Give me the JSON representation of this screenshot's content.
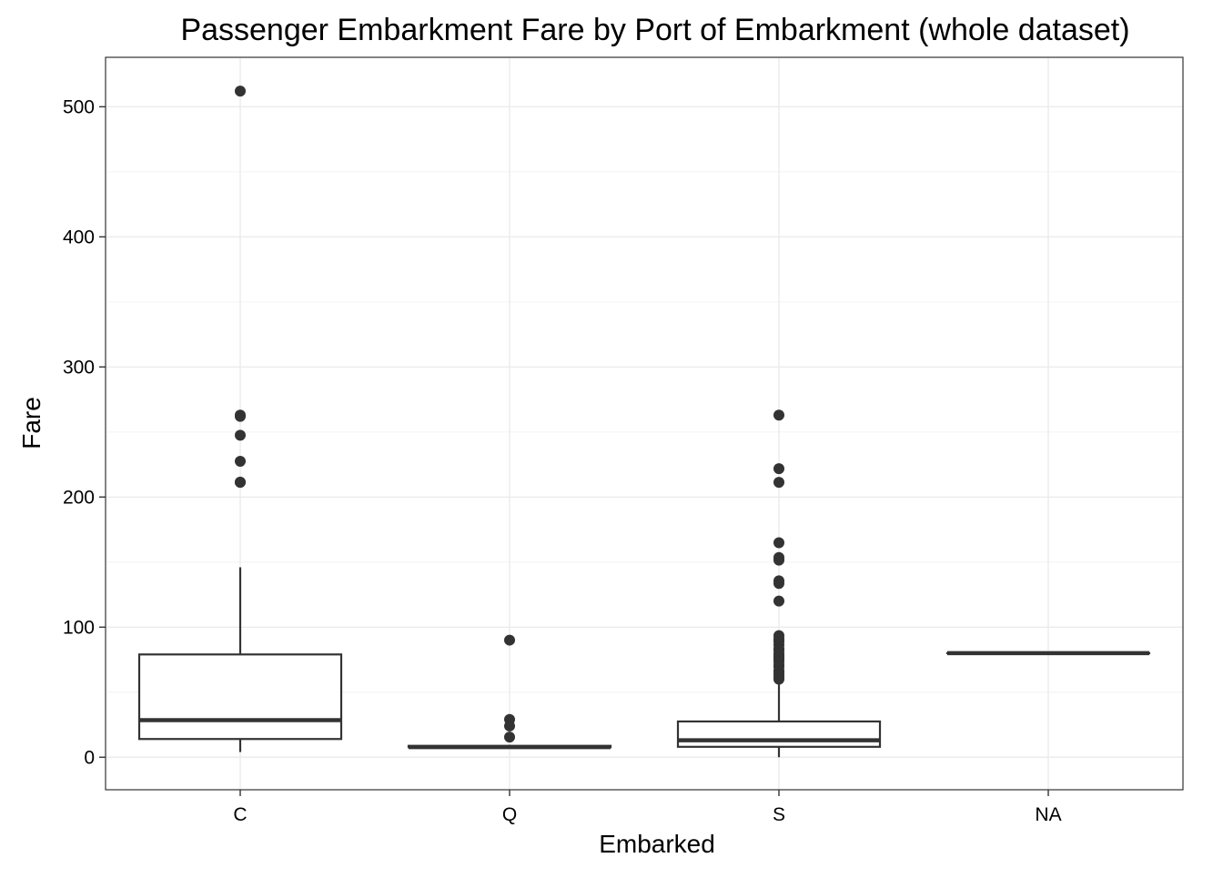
{
  "chart_data": {
    "type": "boxplot",
    "title": "Passenger Embarkment Fare by Port of Embarkment (whole dataset)",
    "xlabel": "Embarked",
    "ylabel": "Fare",
    "categories": [
      "C",
      "Q",
      "S",
      "NA"
    ],
    "ylim": [
      -25,
      538
    ],
    "yticks": [
      0,
      100,
      200,
      300,
      400,
      500
    ],
    "grid": true,
    "legend": "none",
    "boxes": [
      {
        "category": "C",
        "whisker_low": 4,
        "q1": 14,
        "median": 28.5,
        "q3": 79,
        "whisker_high": 146,
        "outliers": [
          512,
          263,
          262,
          247.5,
          227.5,
          211.5,
          211.3
        ]
      },
      {
        "category": "Q",
        "whisker_low": 6.75,
        "q1": 7.75,
        "median": 7.75,
        "q3": 8.75,
        "whisker_high": 9.5,
        "outliers": [
          90,
          29,
          24,
          15.5
        ]
      },
      {
        "category": "S",
        "whisker_low": 0,
        "q1": 8,
        "median": 13,
        "q3": 27.5,
        "whisker_high": 56,
        "outliers": [
          263,
          221.8,
          211.3,
          164.9,
          153.5,
          151.5,
          135.6,
          133.6,
          120,
          93.5,
          91,
          89,
          86.5,
          83.5,
          82,
          79.6,
          78,
          76.7,
          75.2,
          73.5,
          71,
          69.5,
          66.6,
          65,
          63.4,
          61.2,
          60
        ]
      },
      {
        "category": "NA",
        "whisker_low": 80,
        "q1": 80,
        "median": 80,
        "q3": 80,
        "whisker_high": 80,
        "outliers": []
      }
    ]
  },
  "colors": {
    "panel_background": "#ffffff",
    "grid_major": "#ebebeb",
    "grid_minor": "#f5f5f5",
    "panel_border": "#333333",
    "box_stroke": "#333333",
    "outlier_fill": "#333333",
    "tick_mark": "#333333"
  }
}
